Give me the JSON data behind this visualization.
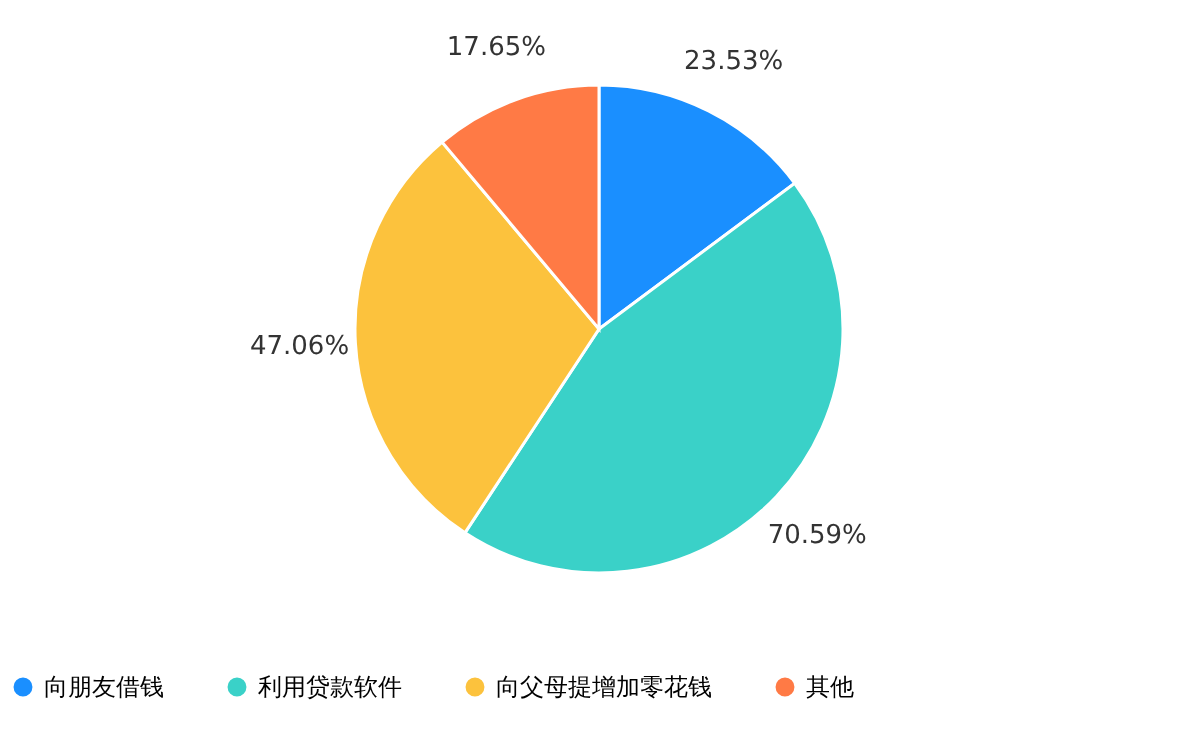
{
  "chart_data": {
    "type": "pie",
    "categories": [
      "向朋友借钱",
      "利用贷款软件",
      "向父母提增加零花钱",
      "其他"
    ],
    "values": [
      23.53,
      70.59,
      47.06,
      17.65
    ],
    "value_labels": [
      "23.53%",
      "70.59%",
      "47.06%",
      "17.65%"
    ],
    "colors": [
      "#1a8fff",
      "#3ad1c8",
      "#fcc23d",
      "#ff7a45"
    ],
    "legend": "bottom"
  }
}
